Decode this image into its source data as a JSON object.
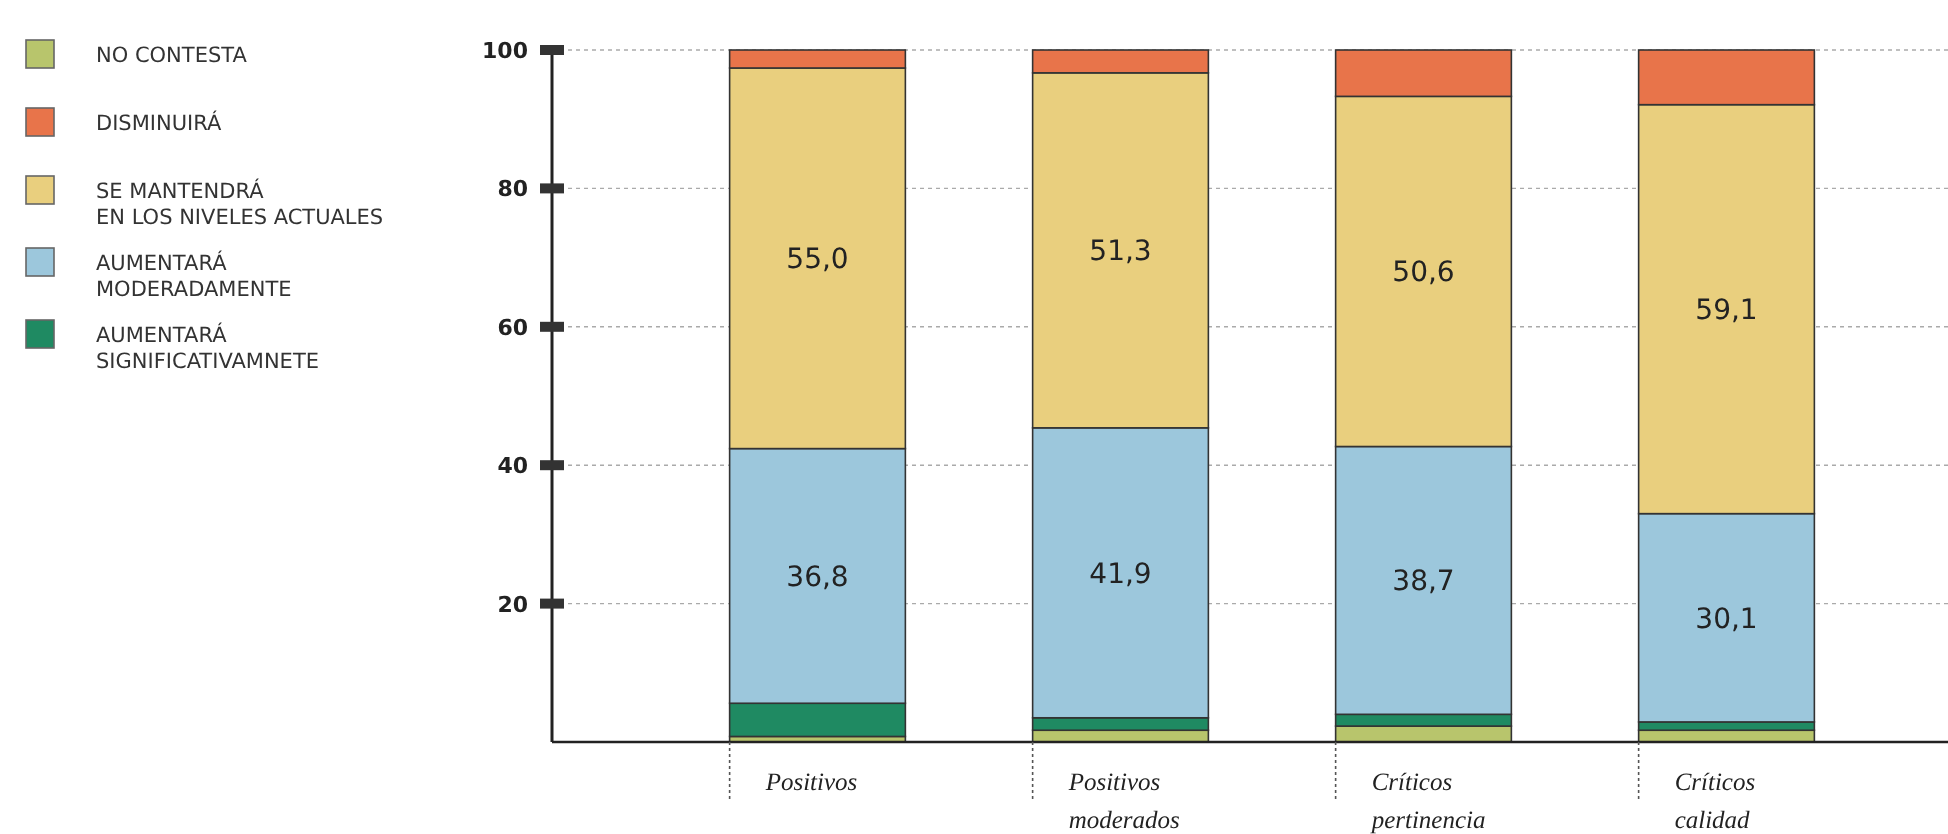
{
  "chart_data": {
    "type": "bar",
    "stacked": true,
    "categories": [
      "Positivos",
      "Positivos moderados",
      "Críticos pertinencia",
      "Críticos calidad"
    ],
    "series": [
      {
        "name": "NO CONTESTA",
        "color": "#b8c56c",
        "values": [
          0.8,
          1.7,
          2.3,
          1.7
        ],
        "value_labels": [
          null,
          null,
          null,
          null
        ]
      },
      {
        "name": "AUMENTARÁ SIGNIFICATIVAMNETE",
        "color": "#1f8a62",
        "values": [
          4.8,
          1.8,
          1.7,
          1.2
        ],
        "value_labels": [
          null,
          null,
          null,
          null
        ]
      },
      {
        "name": "AUMENTARÁ MODERADAMENTE",
        "color": "#9cc7dc",
        "values": [
          36.8,
          41.9,
          38.7,
          30.1
        ],
        "value_labels": [
          "36,8",
          "41,9",
          "38,7",
          "30,1"
        ]
      },
      {
        "name": "SE MANTENDRÁ EN LOS NIVELES ACTUALES",
        "color": "#e9cf7e",
        "values": [
          55.0,
          51.3,
          50.6,
          59.1
        ],
        "value_labels": [
          "55,0",
          "51,3",
          "50,6",
          "59,1"
        ]
      },
      {
        "name": "DISMINUIRÁ",
        "color": "#e8744a",
        "values": [
          2.6,
          3.3,
          6.7,
          7.9
        ],
        "value_labels": [
          null,
          null,
          null,
          null
        ]
      }
    ],
    "ylim": [
      0,
      100
    ],
    "yticks": [
      20,
      40,
      60,
      80,
      100
    ],
    "grid": "y",
    "legend": "left"
  }
}
